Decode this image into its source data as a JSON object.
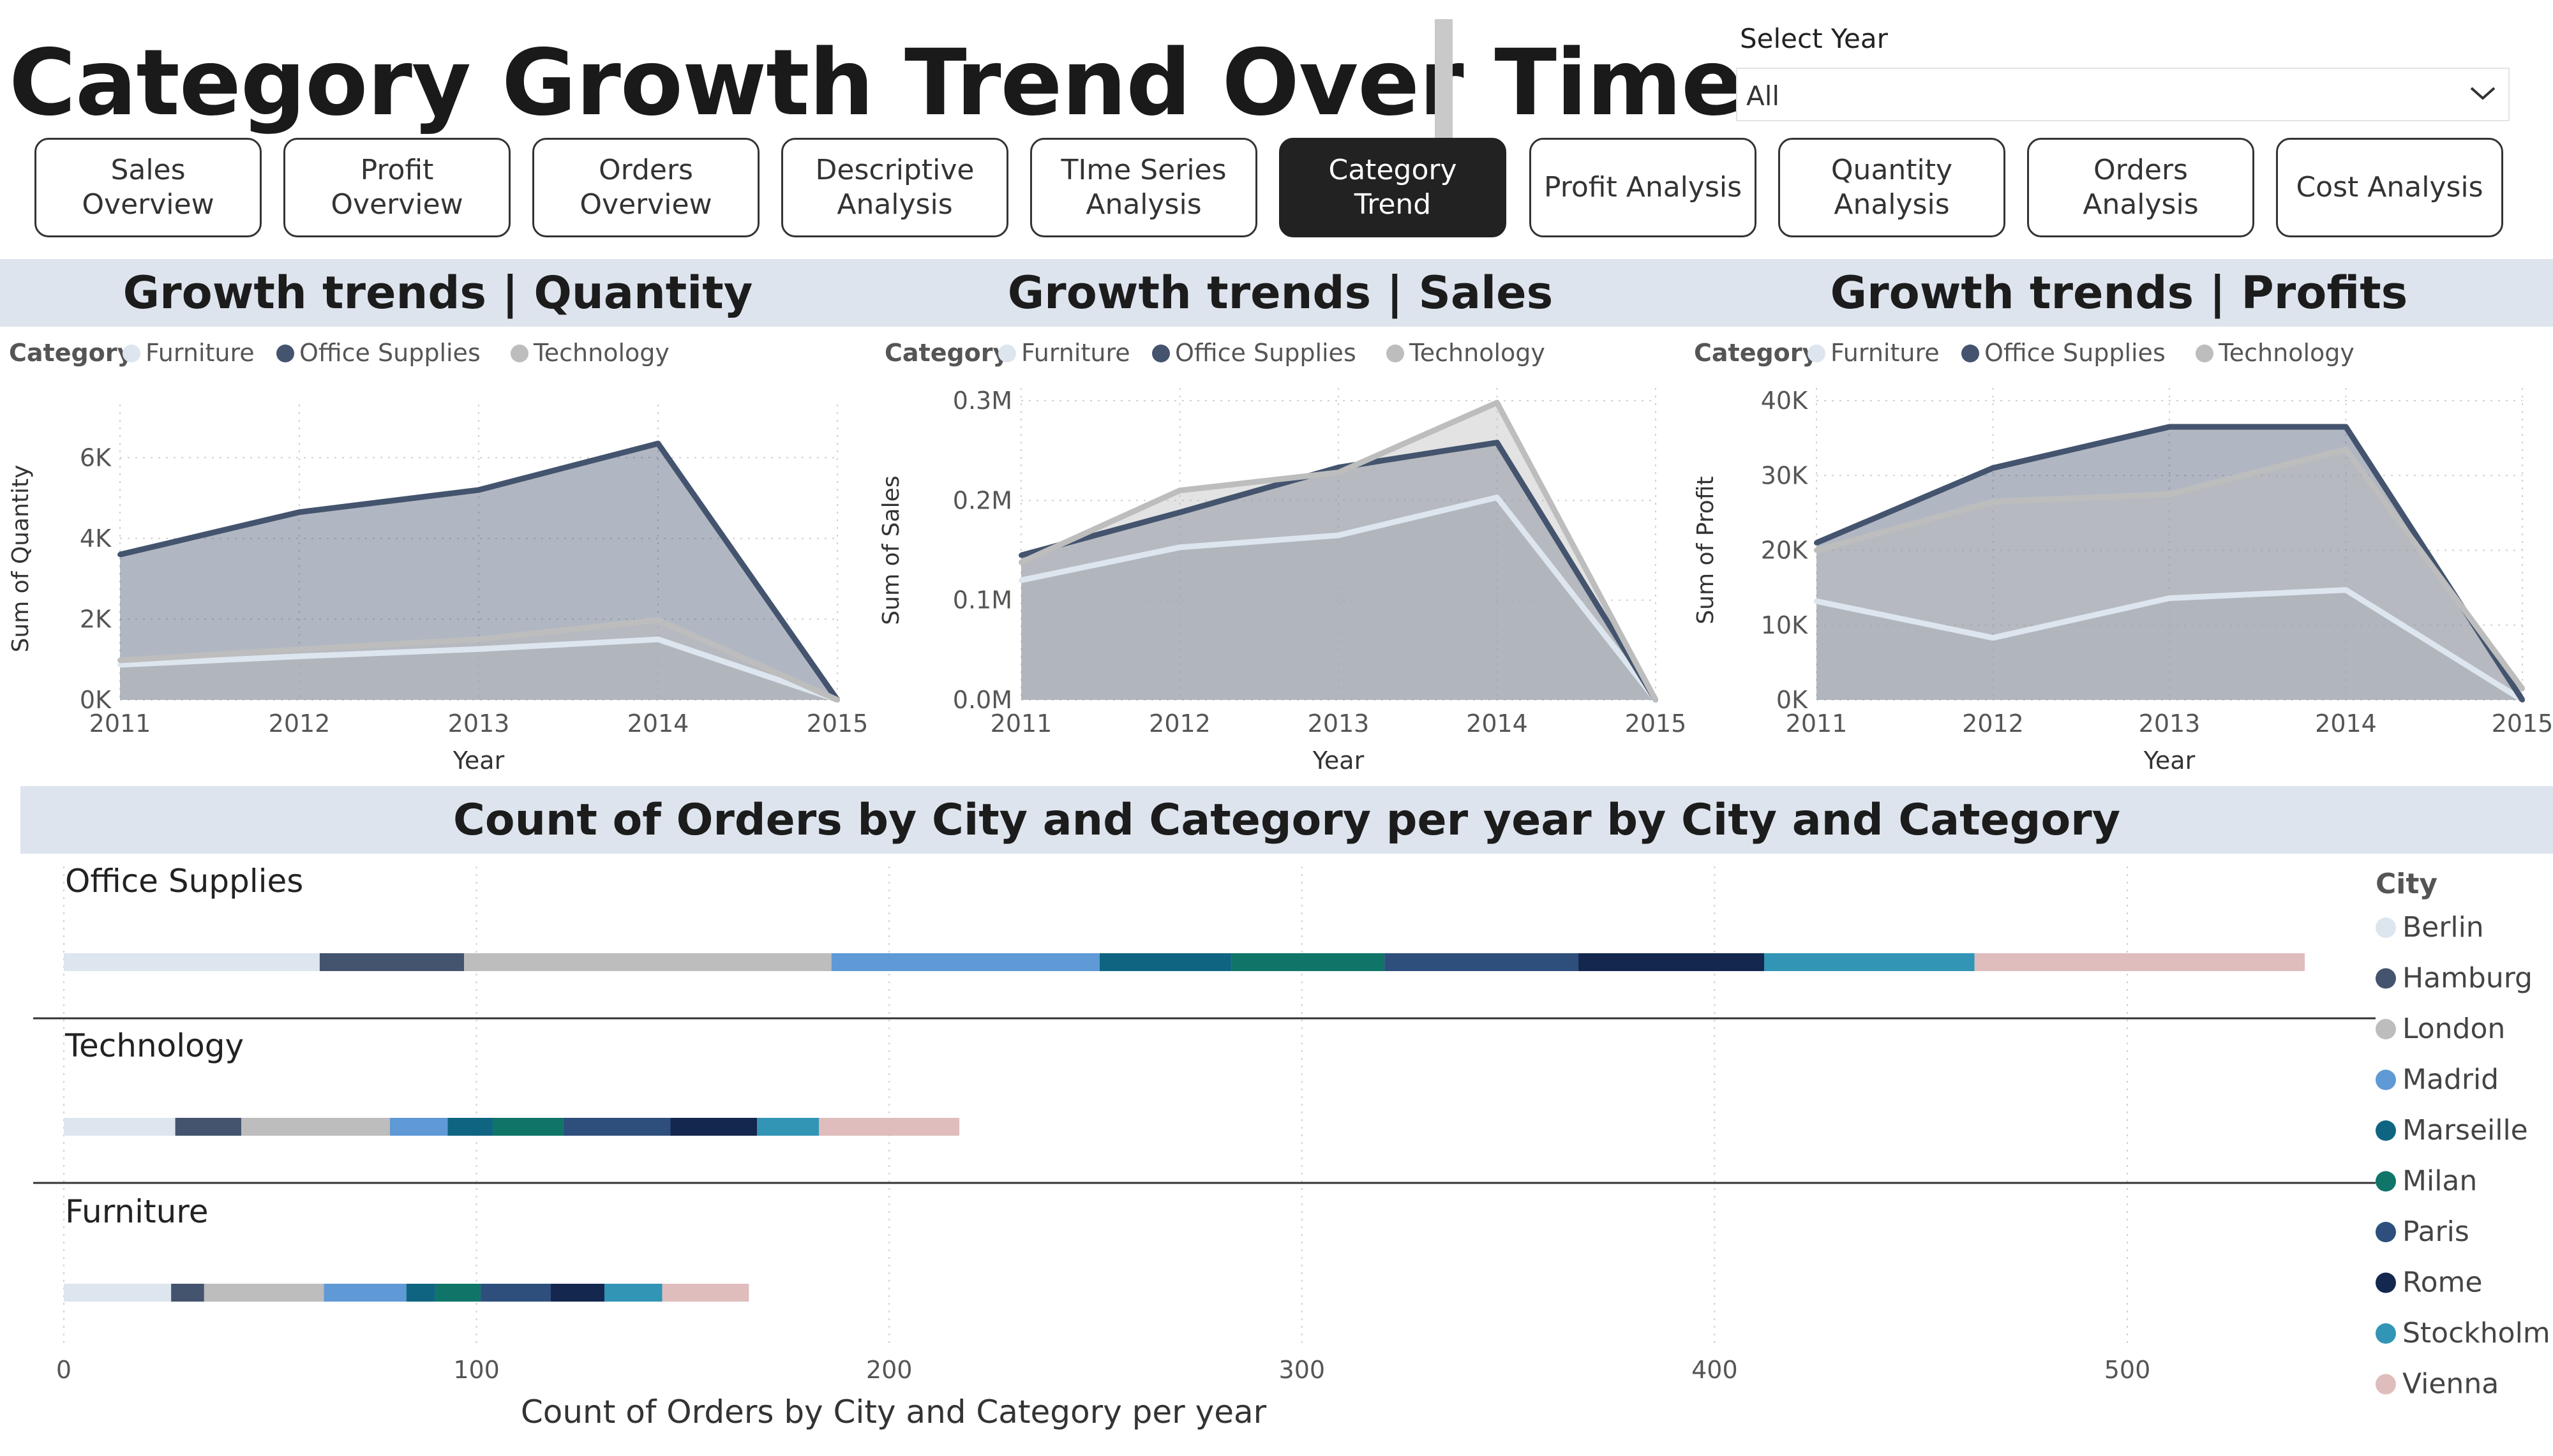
{
  "page": {
    "title": "Category Growth Trend Over Time"
  },
  "slicer": {
    "label": "Select Year",
    "value": "All",
    "chevron_icon": "chevron-down-icon"
  },
  "nav": [
    {
      "label": "Sales Overview",
      "active": false
    },
    {
      "label": "Profit Overview",
      "active": false
    },
    {
      "label": "Orders Overview",
      "active": false
    },
    {
      "label": "Descriptive\nAnalysis",
      "active": false
    },
    {
      "label": "TIme Series\nAnalysis",
      "active": false
    },
    {
      "label": "Category Trend",
      "active": true
    },
    {
      "label": "Profit Analysis",
      "active": false
    },
    {
      "label": "Quantity Analysis",
      "active": false
    },
    {
      "label": "Orders Analysis",
      "active": false
    },
    {
      "label": "Cost Analysis",
      "active": false
    }
  ],
  "colors": {
    "furniture": "#dde5ee",
    "office_supplies": "#44546e",
    "technology": "#bdbdbd",
    "header_bg": "#dde4ed",
    "nav_active": "#222222"
  },
  "chart_data": [
    {
      "type": "area",
      "title": "Growth trends | Quantity",
      "legend_title": "Category",
      "legend_position": "top-left",
      "xlabel": "Year",
      "ylabel": "Sum of Quantity",
      "x": [
        "2011",
        "2012",
        "2013",
        "2014",
        "2015"
      ],
      "ylim": [
        0,
        7000
      ],
      "yticks": [
        0,
        2000,
        4000,
        6000
      ],
      "ytick_labels": [
        "0K",
        "2K",
        "4K",
        "6K"
      ],
      "grid": true,
      "series": [
        {
          "name": "Furniture",
          "values": [
            870,
            1080,
            1260,
            1500,
            0
          ],
          "color": "#dde5ee"
        },
        {
          "name": "Office Supplies",
          "values": [
            3600,
            4650,
            5200,
            6350,
            0
          ],
          "color": "#44546e"
        },
        {
          "name": "Technology",
          "values": [
            980,
            1250,
            1500,
            1980,
            0
          ],
          "color": "#bdbdbd"
        }
      ]
    },
    {
      "type": "area",
      "title": "Growth trends | Sales",
      "legend_title": "Category",
      "legend_position": "top-left",
      "xlabel": "Year",
      "ylabel": "Sum of Sales",
      "x": [
        "2011",
        "2012",
        "2013",
        "2014",
        "2015"
      ],
      "ylim": [
        0,
        0.3
      ],
      "yticks": [
        0,
        0.1,
        0.2,
        0.3
      ],
      "ytick_labels": [
        "0.0M",
        "0.1M",
        "0.2M",
        "0.3M"
      ],
      "unit": "M",
      "grid": true,
      "series": [
        {
          "name": "Furniture",
          "values": [
            0.12,
            0.153,
            0.165,
            0.203,
            0
          ],
          "color": "#dde5ee"
        },
        {
          "name": "Office Supplies",
          "values": [
            0.145,
            0.188,
            0.233,
            0.258,
            0
          ],
          "color": "#44546e"
        },
        {
          "name": "Technology",
          "values": [
            0.138,
            0.21,
            0.228,
            0.298,
            0
          ],
          "color": "#bdbdbd"
        }
      ]
    },
    {
      "type": "area",
      "title": "Growth trends | Profits",
      "legend_title": "Category",
      "legend_position": "top-left",
      "xlabel": "Year",
      "ylabel": "Sum of Profit",
      "x": [
        "2011",
        "2012",
        "2013",
        "2014",
        "2015"
      ],
      "ylim": [
        0,
        40000
      ],
      "yticks": [
        0,
        10000,
        20000,
        30000,
        40000
      ],
      "ytick_labels": [
        "0K",
        "10K",
        "20K",
        "30K",
        "40K"
      ],
      "grid": true,
      "series": [
        {
          "name": "Furniture",
          "values": [
            13200,
            8300,
            13600,
            14700,
            0
          ],
          "color": "#dde5ee"
        },
        {
          "name": "Office Supplies",
          "values": [
            21000,
            31000,
            36500,
            36500,
            0
          ],
          "color": "#44546e"
        },
        {
          "name": "Technology",
          "values": [
            20000,
            26500,
            27500,
            33500,
            1500
          ],
          "color": "#bdbdbd"
        }
      ]
    },
    {
      "type": "bar",
      "orientation": "horizontal",
      "stacked": true,
      "title": "Count of Orders by City and Category per year by City and Category",
      "xlabel": "Count of Orders by City and Category per year",
      "legend_title": "City",
      "legend_position": "right",
      "categories": [
        "Office Supplies",
        "Technology",
        "Furniture"
      ],
      "xlim": [
        0,
        560
      ],
      "xticks": [
        0,
        100,
        200,
        300,
        400,
        500
      ],
      "grid": true,
      "series": [
        {
          "name": "Berlin",
          "color": "#dde5ee",
          "values": [
            62,
            27,
            26
          ]
        },
        {
          "name": "Hamburg",
          "color": "#44546e",
          "values": [
            35,
            16,
            8
          ]
        },
        {
          "name": "London",
          "color": "#bdbdbd",
          "values": [
            89,
            36,
            29
          ]
        },
        {
          "name": "Madrid",
          "color": "#5f99d6",
          "values": [
            65,
            14,
            20
          ]
        },
        {
          "name": "Marseille",
          "color": "#0f6581",
          "values": [
            32,
            11,
            7
          ]
        },
        {
          "name": "Milan",
          "color": "#0f7569",
          "values": [
            37,
            17,
            11
          ]
        },
        {
          "name": "Paris",
          "color": "#2e4f7c",
          "values": [
            47,
            26,
            17
          ]
        },
        {
          "name": "Rome",
          "color": "#14274e",
          "values": [
            45,
            21,
            13
          ]
        },
        {
          "name": "Stockholm",
          "color": "#3295b5",
          "values": [
            51,
            15,
            14
          ]
        },
        {
          "name": "Vienna",
          "color": "#dfbdbd",
          "values": [
            80,
            34,
            21
          ]
        }
      ]
    }
  ]
}
